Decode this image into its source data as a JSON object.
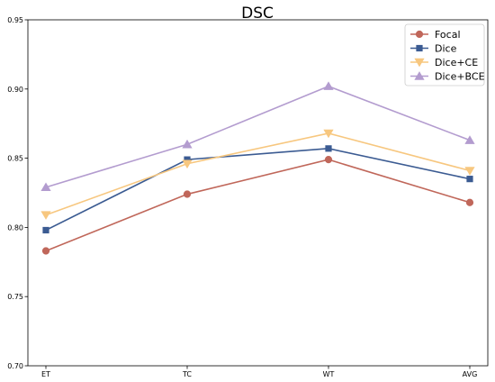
{
  "chart_data": {
    "type": "line",
    "title": "DSC",
    "xlabel": "",
    "ylabel": "",
    "categories": [
      "ET",
      "TC",
      "WT",
      "AVG"
    ],
    "ylim": [
      0.7,
      0.95
    ],
    "yticks": [
      "0.70",
      "0.75",
      "0.80",
      "0.85",
      "0.90",
      "0.95"
    ],
    "grid": false,
    "legend_position": "top-right",
    "series": [
      {
        "name": "Focal",
        "values": [
          0.783,
          0.824,
          0.849,
          0.818
        ],
        "color": "#c0675a",
        "marker": "circle"
      },
      {
        "name": "Dice",
        "values": [
          0.798,
          0.849,
          0.857,
          0.835
        ],
        "color": "#3b5b92",
        "marker": "square"
      },
      {
        "name": "Dice+CE",
        "values": [
          0.809,
          0.846,
          0.868,
          0.841
        ],
        "color": "#f7c77f",
        "marker": "triangle-down"
      },
      {
        "name": "Dice+BCE",
        "values": [
          0.829,
          0.86,
          0.902,
          0.863
        ],
        "color": "#b39ccf",
        "marker": "triangle-up"
      }
    ]
  }
}
